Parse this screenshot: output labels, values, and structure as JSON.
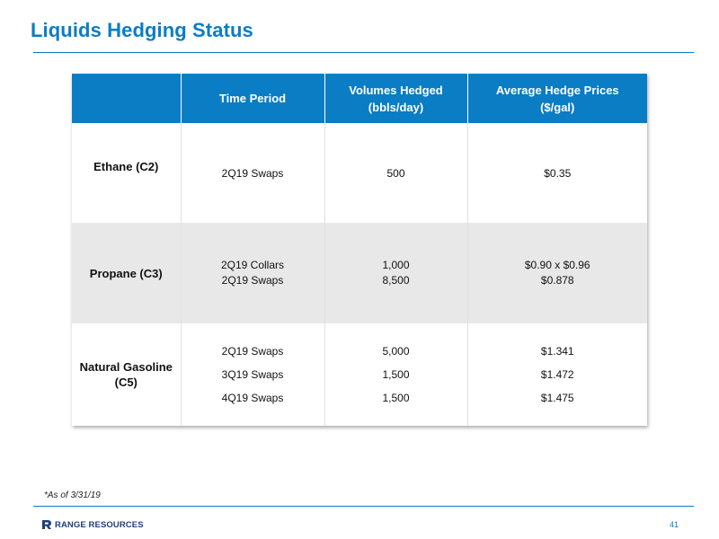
{
  "page": {
    "title": "Liquids Hedging Status",
    "footnote": "*As of 3/31/19",
    "logo_text": "RANGE RESOURCES",
    "page_number": "41",
    "colors": {
      "accent": "#0a7dc4",
      "shaded_row": "#e8e8e8",
      "logo": "#1f3f7a"
    }
  },
  "table": {
    "headers": [
      "",
      "Time Period",
      "Volumes Hedged\n(bbls/day)",
      "Average Hedge Prices\n($/gal)"
    ],
    "rows": [
      {
        "product": "Ethane (C2)",
        "periods": [
          "2Q19 Swaps"
        ],
        "volumes": [
          "500"
        ],
        "prices": [
          "$0.35"
        ]
      },
      {
        "product": "Propane (C3)",
        "periods": [
          "2Q19 Collars",
          "2Q19 Swaps"
        ],
        "volumes": [
          "1,000",
          "8,500"
        ],
        "prices": [
          "$0.90 x $0.96",
          "$0.878"
        ]
      },
      {
        "product": "Natural Gasoline\n(C5)",
        "periods": [
          "2Q19 Swaps",
          "3Q19 Swaps",
          "4Q19 Swaps"
        ],
        "volumes": [
          "5,000",
          "1,500",
          "1,500"
        ],
        "prices": [
          "$1.341",
          "$1.472",
          "$1.475"
        ]
      }
    ]
  }
}
